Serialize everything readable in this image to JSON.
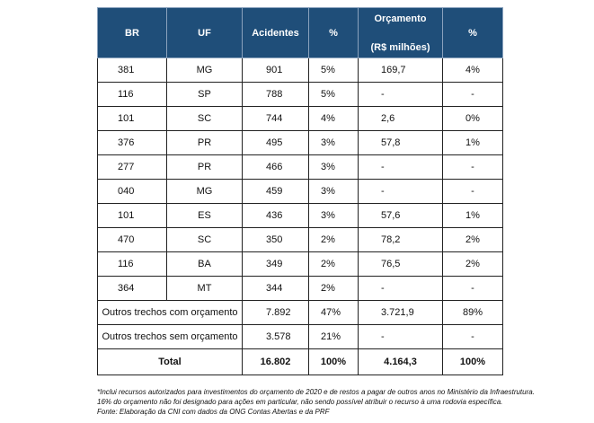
{
  "table": {
    "headers": {
      "br": "BR",
      "uf": "UF",
      "acidentes": "Acidentes",
      "pct1": "%",
      "orcamento_line1": "Orçamento",
      "orcamento_line2": "(R$ milhões)",
      "pct2": "%"
    },
    "rows": [
      {
        "br": "381",
        "uf": "MG",
        "acidentes": "901",
        "pct": "5%",
        "orcamento": "169,7",
        "pct_orc": "4%"
      },
      {
        "br": "116",
        "uf": "SP",
        "acidentes": "788",
        "pct": "5%",
        "orcamento": "-",
        "pct_orc": "-"
      },
      {
        "br": "101",
        "uf": "SC",
        "acidentes": "744",
        "pct": "4%",
        "orcamento": "2,6",
        "pct_orc": "0%"
      },
      {
        "br": "376",
        "uf": "PR",
        "acidentes": "495",
        "pct": "3%",
        "orcamento": "57,8",
        "pct_orc": "1%"
      },
      {
        "br": "277",
        "uf": "PR",
        "acidentes": "466",
        "pct": "3%",
        "orcamento": "-",
        "pct_orc": "-"
      },
      {
        "br": "040",
        "uf": "MG",
        "acidentes": "459",
        "pct": "3%",
        "orcamento": "-",
        "pct_orc": "-"
      },
      {
        "br": "101",
        "uf": "ES",
        "acidentes": "436",
        "pct": "3%",
        "orcamento": "57,6",
        "pct_orc": "1%"
      },
      {
        "br": "470",
        "uf": "SC",
        "acidentes": "350",
        "pct": "2%",
        "orcamento": "78,2",
        "pct_orc": "2%"
      },
      {
        "br": "116",
        "uf": "BA",
        "acidentes": "349",
        "pct": "2%",
        "orcamento": "76,5",
        "pct_orc": "2%"
      },
      {
        "br": "364",
        "uf": "MT",
        "acidentes": "344",
        "pct": "2%",
        "orcamento": "-",
        "pct_orc": "-"
      }
    ],
    "summary_rows": [
      {
        "label": "Outros trechos com orçamento",
        "acidentes": "7.892",
        "pct": "47%",
        "orcamento": "3.721,9",
        "pct_orc": "89%"
      },
      {
        "label": "Outros trechos sem orçamento",
        "acidentes": "3.578",
        "pct": "21%",
        "orcamento": "-",
        "pct_orc": "-"
      }
    ],
    "total": {
      "label": "Total",
      "acidentes": "16.802",
      "pct": "100%",
      "orcamento": "4.164,3",
      "pct_orc": "100%"
    }
  },
  "notes": {
    "line1": "*Inclui recursos autorizados para investimentos do orçamento de 2020 e de restos a pagar de outros anos no Ministério da Infraestrutura.",
    "line2": "16% do orçamento não foi designado para ações em particular, não sendo possível atribuir o recurso à uma rodovia específica.",
    "line3": "Fonte: Elaboração da CNI com dados da ONG Contas Abertas e da PRF"
  }
}
